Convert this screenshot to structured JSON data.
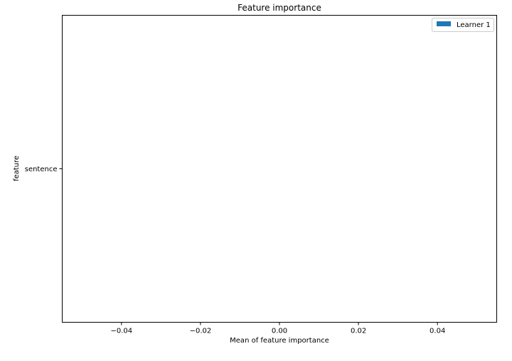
{
  "chart_data": {
    "type": "bar",
    "orientation": "horizontal",
    "title": "Feature importance",
    "xlabel": "Mean of feature importance",
    "ylabel": "feature",
    "categories": [
      "sentence"
    ],
    "series": [
      {
        "name": "Learner 1",
        "values": [
          0.0
        ],
        "color": "#1f77b4"
      }
    ],
    "xlim": [
      -0.055,
      0.055
    ],
    "xticks": [
      -0.04,
      -0.02,
      0.0,
      0.02,
      0.04
    ],
    "xtick_labels": [
      "−0.04",
      "−0.02",
      "0.00",
      "0.02",
      "0.04"
    ],
    "grid": false,
    "legend_position": "top-right"
  }
}
